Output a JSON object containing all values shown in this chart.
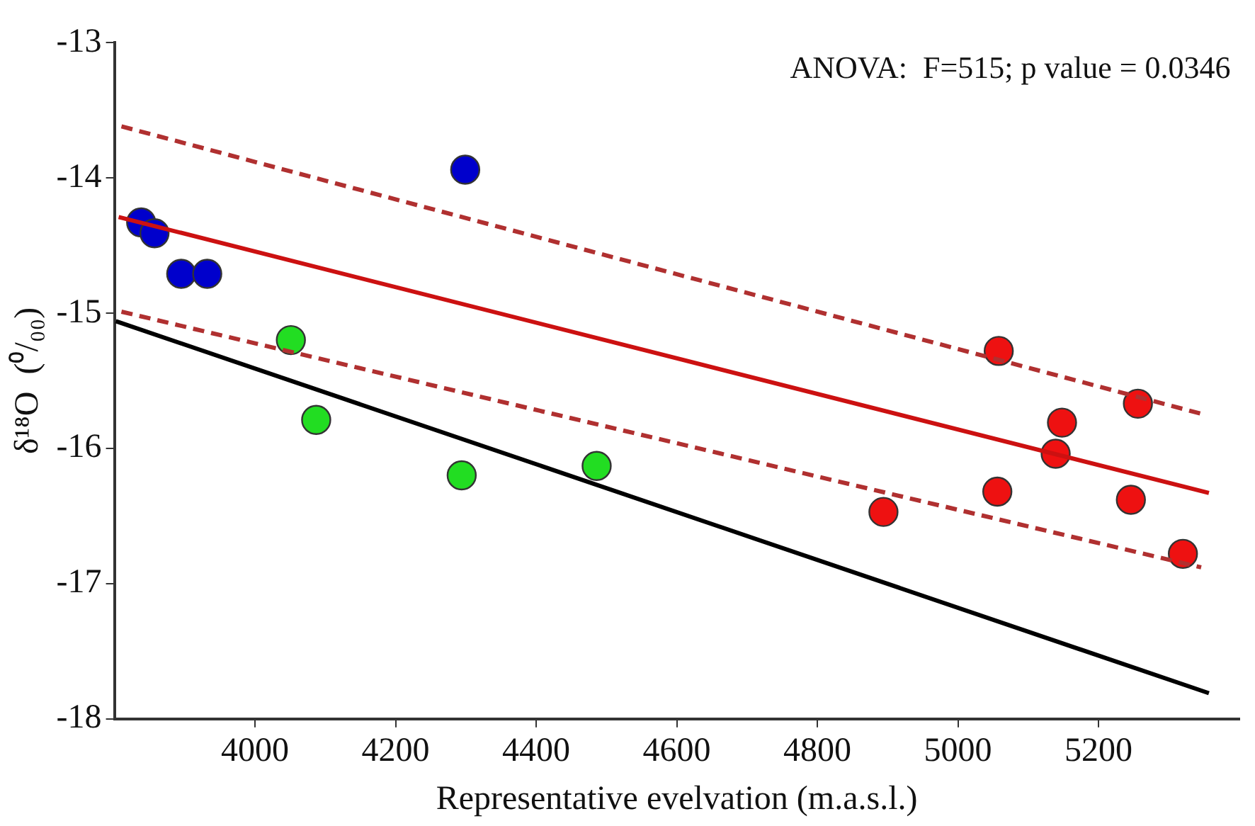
{
  "chart_data": {
    "type": "scatter",
    "xlabel": "Representative evelvation (m.a.s.l.)",
    "ylabel": "δ¹⁸O  (⁰/₀₀)",
    "annotations": [
      "ANOVA:  F=515; p value = 0.0346"
    ],
    "xlim": [
      3800,
      5400
    ],
    "xticks": [
      4000,
      4200,
      4400,
      4600,
      4800,
      5000,
      5200
    ],
    "ylim": [
      -18,
      -13
    ],
    "yticks": [
      -18,
      -17,
      -16,
      -15,
      -14,
      -13
    ],
    "grid": false,
    "legend": false,
    "marker": "circle",
    "series": [
      {
        "type": "line",
        "color": "#000000",
        "marker": "none",
        "line_style": "solid",
        "x": [
          3802,
          5357
        ],
        "values": [
          -15.06,
          -17.81
        ]
      },
      {
        "type": "line",
        "color": "#cc1111",
        "marker": "none",
        "line_style": "solid",
        "x": [
          3806,
          5357
        ],
        "values": [
          -14.29,
          -16.33
        ]
      },
      {
        "type": "line",
        "color": "#b03030",
        "marker": "none",
        "line_style": "dashed",
        "x": [
          3810,
          5350
        ],
        "values": [
          -13.62,
          -15.75
        ]
      },
      {
        "type": "line",
        "color": "#b03030",
        "marker": "none",
        "line_style": "dashed",
        "x": [
          3810,
          5346
        ],
        "values": [
          -14.99,
          -16.88
        ]
      },
      {
        "color": "#0000cc",
        "x": [
          3838,
          3857,
          3895,
          3932,
          4299
        ],
        "values": [
          -14.33,
          -14.41,
          -14.71,
          -14.71,
          -13.94
        ]
      },
      {
        "color": "#22dd22",
        "x": [
          4051,
          4087,
          4294,
          4486
        ],
        "values": [
          -15.2,
          -15.79,
          -16.2,
          -16.13
        ]
      },
      {
        "color": "#ee1111",
        "x": [
          4894,
          5056,
          5058,
          5139,
          5148,
          5246,
          5256,
          5320
        ],
        "values": [
          -16.47,
          -16.32,
          -15.28,
          -16.04,
          -15.81,
          -16.38,
          -15.67,
          -16.78
        ]
      }
    ]
  }
}
